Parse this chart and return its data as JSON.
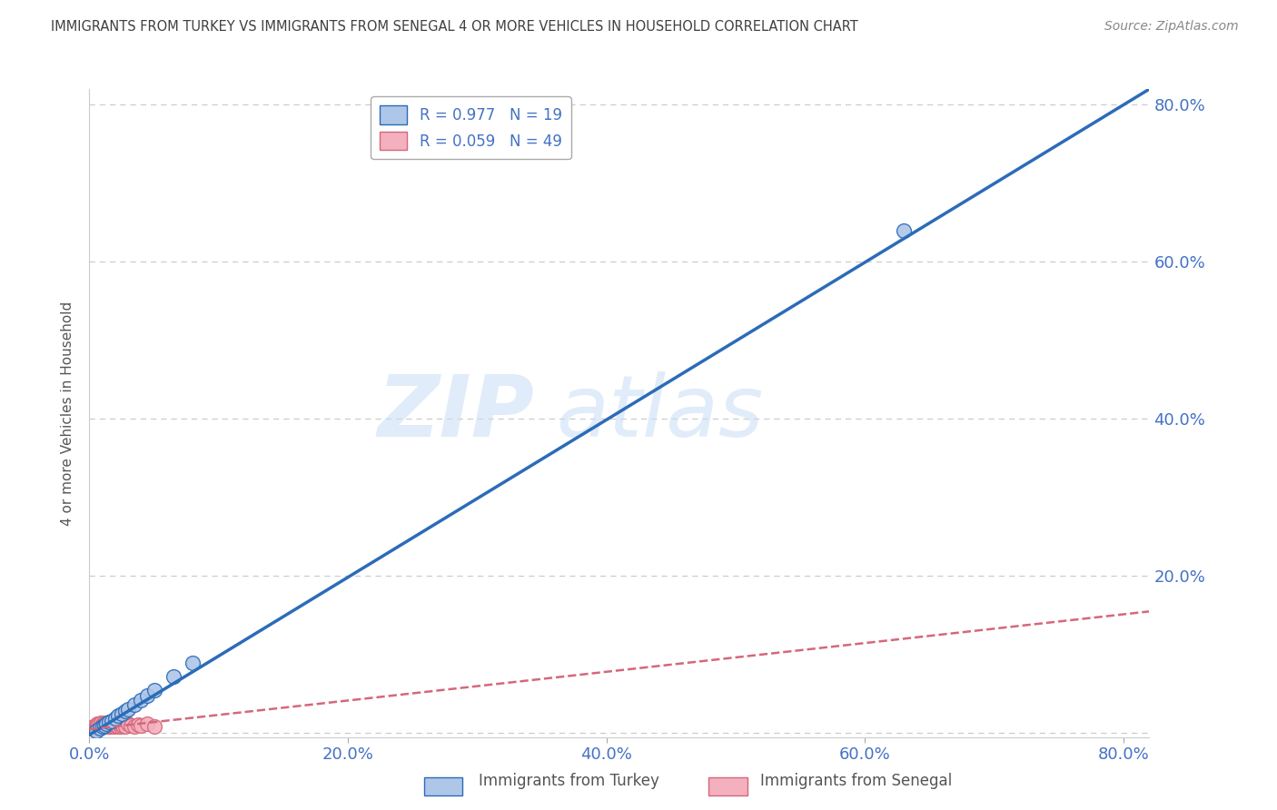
{
  "title": "IMMIGRANTS FROM TURKEY VS IMMIGRANTS FROM SENEGAL 4 OR MORE VEHICLES IN HOUSEHOLD CORRELATION CHART",
  "source": "Source: ZipAtlas.com",
  "ylabel": "4 or more Vehicles in Household",
  "xlim": [
    0.0,
    0.82
  ],
  "ylim": [
    -0.005,
    0.82
  ],
  "xticks": [
    0.0,
    0.2,
    0.4,
    0.6,
    0.8
  ],
  "yticks": [
    0.0,
    0.2,
    0.4,
    0.6,
    0.8
  ],
  "xticklabels": [
    "0.0%",
    "20.0%",
    "40.0%",
    "60.0%",
    "80.0%"
  ],
  "yticklabels": [
    "",
    "20.0%",
    "40.0%",
    "60.0%",
    "80.0%"
  ],
  "turkey_R": 0.977,
  "turkey_N": 19,
  "senegal_R": 0.059,
  "senegal_N": 49,
  "turkey_color": "#aec6e8",
  "turkey_line_color": "#2b6cb8",
  "senegal_color": "#f4b0be",
  "senegal_line_color": "#d4687a",
  "watermark1": "ZIP",
  "watermark2": "atlas",
  "legend_label_turkey": "Immigrants from Turkey",
  "legend_label_senegal": "Immigrants from Senegal",
  "background_color": "#ffffff",
  "grid_color": "#cccccc",
  "tick_color": "#4472c4",
  "title_color": "#404040",
  "turkey_scatter_x": [
    0.005,
    0.008,
    0.01,
    0.012,
    0.013,
    0.015,
    0.017,
    0.02,
    0.022,
    0.025,
    0.028,
    0.03,
    0.035,
    0.04,
    0.045,
    0.05,
    0.065,
    0.08,
    0.63
  ],
  "turkey_scatter_y": [
    0.003,
    0.006,
    0.008,
    0.01,
    0.012,
    0.014,
    0.016,
    0.019,
    0.022,
    0.025,
    0.028,
    0.031,
    0.036,
    0.042,
    0.048,
    0.055,
    0.072,
    0.09,
    0.64
  ],
  "senegal_scatter_x": [
    0.002,
    0.003,
    0.004,
    0.005,
    0.005,
    0.006,
    0.006,
    0.007,
    0.007,
    0.008,
    0.008,
    0.009,
    0.009,
    0.01,
    0.01,
    0.011,
    0.011,
    0.012,
    0.012,
    0.013,
    0.013,
    0.014,
    0.014,
    0.015,
    0.015,
    0.016,
    0.016,
    0.017,
    0.017,
    0.018,
    0.018,
    0.019,
    0.019,
    0.02,
    0.021,
    0.022,
    0.023,
    0.024,
    0.025,
    0.026,
    0.027,
    0.028,
    0.03,
    0.032,
    0.035,
    0.038,
    0.04,
    0.045,
    0.05
  ],
  "senegal_scatter_y": [
    0.006,
    0.008,
    0.005,
    0.01,
    0.007,
    0.009,
    0.012,
    0.008,
    0.011,
    0.007,
    0.01,
    0.009,
    0.013,
    0.008,
    0.011,
    0.01,
    0.013,
    0.009,
    0.012,
    0.008,
    0.011,
    0.01,
    0.013,
    0.009,
    0.012,
    0.008,
    0.011,
    0.01,
    0.013,
    0.009,
    0.012,
    0.008,
    0.011,
    0.01,
    0.013,
    0.009,
    0.012,
    0.008,
    0.011,
    0.01,
    0.013,
    0.009,
    0.012,
    0.01,
    0.009,
    0.011,
    0.01,
    0.012,
    0.009
  ],
  "turkey_line_x": [
    0.0,
    0.82
  ],
  "turkey_line_y": [
    -0.002,
    0.82
  ],
  "senegal_line_x": [
    0.0,
    0.82
  ],
  "senegal_line_y": [
    0.005,
    0.155
  ]
}
